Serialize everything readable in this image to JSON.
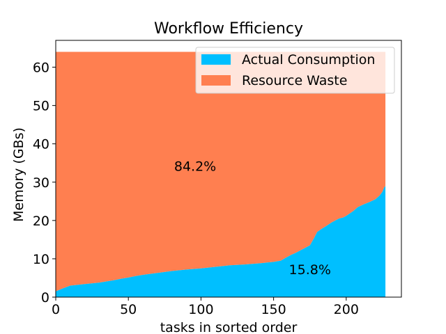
{
  "chart_data": {
    "type": "area",
    "title": "Workflow Efficiency",
    "xlabel": "tasks in sorted order",
    "ylabel": "Memory (GBs)",
    "xlim": [
      0,
      238
    ],
    "ylim": [
      0,
      67
    ],
    "xticks": [
      0,
      50,
      100,
      150,
      200
    ],
    "yticks": [
      0,
      10,
      20,
      30,
      40,
      50,
      60
    ],
    "grid": false,
    "legend_position": "top-right",
    "allocated_memory": 64,
    "series": [
      {
        "name": "Actual Consumption",
        "color": "#00bfff",
        "x": [
          0,
          5,
          10,
          20,
          30,
          40,
          45,
          50,
          55,
          60,
          70,
          80,
          90,
          100,
          110,
          120,
          130,
          140,
          150,
          155,
          158,
          162,
          165,
          170,
          175,
          178,
          180,
          183,
          186,
          190,
          195,
          198,
          200,
          205,
          208,
          212,
          216,
          220,
          223,
          225,
          226,
          227
        ],
        "values": [
          1.5,
          2.3,
          3.0,
          3.4,
          3.8,
          4.4,
          4.8,
          5.1,
          5.5,
          5.8,
          6.3,
          6.8,
          7.2,
          7.5,
          7.9,
          8.3,
          8.5,
          8.8,
          9.2,
          9.5,
          10.2,
          11.0,
          11.5,
          12.5,
          13.5,
          15.5,
          17.0,
          17.8,
          18.5,
          19.5,
          20.5,
          20.8,
          21.2,
          22.5,
          23.5,
          24.2,
          24.8,
          25.5,
          26.5,
          27.5,
          28.5,
          29.0
        ]
      },
      {
        "name": "Resource Waste",
        "color": "#ff7f50"
      }
    ],
    "annotations": [
      {
        "text": "84.2%",
        "x": 96,
        "y": 33
      },
      {
        "text": "15.8%",
        "x": 175,
        "y": 6
      }
    ]
  }
}
